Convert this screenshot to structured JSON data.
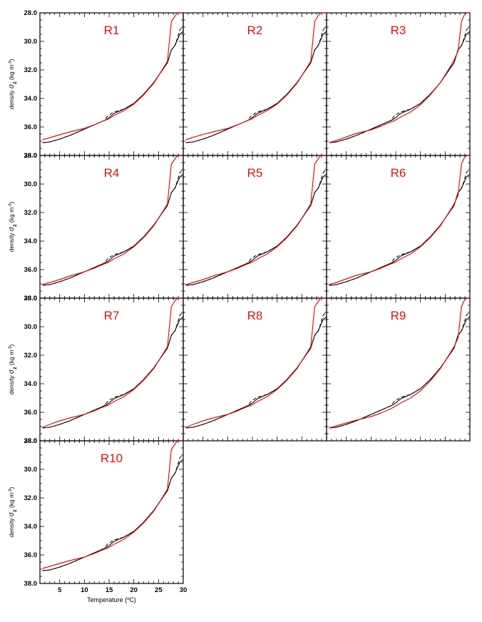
{
  "figure": {
    "ylabel_prefix": "density ",
    "ylabel_symbol": "σ",
    "ylabel_sub": "2",
    "ylabel_units_a": " (kg m",
    "ylabel_units_sup": "-3",
    "ylabel_units_b": ")",
    "xlabel_a": "Temperature (",
    "xlabel_sup": "o",
    "xlabel_b": "C)"
  },
  "colors": {
    "observed": "#000000",
    "model": "#e01010",
    "panel_label": "#e01010",
    "axis": "#000000"
  },
  "chart_data": [
    {
      "type": "line",
      "title": "R1",
      "x": [
        1.5,
        3,
        5,
        7,
        10,
        12,
        14,
        14.8,
        16,
        18,
        20,
        22,
        24,
        26,
        26.8,
        27.6,
        28.3,
        28.8,
        29.3,
        30
      ],
      "series": [
        {
          "values": [
            37.1,
            37.05,
            36.85,
            36.6,
            36.15,
            35.85,
            35.55,
            35.4,
            35.05,
            34.75,
            34.35,
            33.7,
            32.9,
            31.9,
            31.5,
            30.6,
            30.3,
            29.9,
            29.5,
            29.3
          ]
        },
        {
          "values": [
            37.1,
            37.05,
            36.85,
            36.6,
            36.15,
            35.85,
            35.55,
            35.2,
            34.95,
            34.75,
            34.35,
            33.7,
            32.9,
            31.9,
            31.5,
            30.6,
            30.3,
            29.8,
            29.2,
            28.95
          ]
        },
        {
          "values": [
            36.9,
            36.75,
            36.55,
            36.35,
            36.1,
            35.85,
            35.55,
            35.45,
            35.2,
            34.85,
            34.4,
            33.75,
            32.95,
            31.85,
            31.4,
            28.6,
            28.25,
            28.0,
            28.0,
            28.0
          ]
        }
      ],
      "xlim": [
        1,
        30
      ],
      "ylim": [
        28.0,
        38.0
      ],
      "yticks": [
        "28.0",
        "30.0",
        "32.0",
        "34.0",
        "36.0",
        "38.0"
      ],
      "xticks": [
        "5",
        "10",
        "15",
        "20",
        "25",
        "30"
      ]
    },
    {
      "type": "line",
      "title": "R2",
      "x": [
        1.5,
        3,
        5,
        7,
        10,
        12,
        14,
        14.8,
        16,
        18,
        20,
        22,
        24,
        26,
        26.8,
        27.6,
        28.3,
        28.8,
        29.3,
        30
      ],
      "series": [
        {
          "values": [
            37.1,
            37.05,
            36.85,
            36.6,
            36.15,
            35.85,
            35.55,
            35.4,
            35.05,
            34.75,
            34.35,
            33.7,
            32.9,
            31.9,
            31.5,
            30.6,
            30.3,
            29.9,
            29.5,
            29.3
          ]
        },
        {
          "values": [
            37.1,
            37.05,
            36.85,
            36.6,
            36.15,
            35.85,
            35.55,
            35.2,
            34.95,
            34.75,
            34.35,
            33.7,
            32.9,
            31.9,
            31.5,
            30.6,
            30.3,
            29.8,
            29.2,
            28.95
          ]
        },
        {
          "values": [
            36.9,
            36.72,
            36.52,
            36.35,
            36.1,
            35.85,
            35.55,
            35.45,
            35.2,
            34.85,
            34.4,
            33.75,
            32.95,
            31.85,
            31.4,
            28.6,
            28.2,
            28.0,
            28.0,
            28.0
          ]
        }
      ],
      "xlim": [
        1,
        30
      ],
      "ylim": [
        28.0,
        38.0
      ],
      "yticks": [
        "28.0",
        "30.0",
        "32.0",
        "34.0",
        "36.0",
        "38.0"
      ],
      "xticks": [
        "5",
        "10",
        "15",
        "20",
        "25",
        "30"
      ]
    },
    {
      "type": "line",
      "title": "R3",
      "x": [
        1.5,
        3,
        5,
        7,
        10,
        12,
        14,
        14.8,
        16,
        18,
        20,
        22,
        24,
        26,
        26.8,
        27.6,
        28.3,
        28.8,
        29.3,
        30
      ],
      "series": [
        {
          "values": [
            37.1,
            37.05,
            36.85,
            36.6,
            36.15,
            35.85,
            35.55,
            35.4,
            35.05,
            34.75,
            34.35,
            33.7,
            32.9,
            31.9,
            31.5,
            30.6,
            30.3,
            29.9,
            29.5,
            29.3
          ]
        },
        {
          "values": [
            37.1,
            37.05,
            36.85,
            36.6,
            36.15,
            35.85,
            35.55,
            35.2,
            34.95,
            34.75,
            34.35,
            33.7,
            32.9,
            31.9,
            31.5,
            30.6,
            30.3,
            29.8,
            29.2,
            28.95
          ]
        },
        {
          "values": [
            37.1,
            36.95,
            36.7,
            36.45,
            36.2,
            35.95,
            35.65,
            35.55,
            35.3,
            34.95,
            34.45,
            33.75,
            32.9,
            31.8,
            31.3,
            30.7,
            28.6,
            28.2,
            28.0,
            28.0
          ]
        }
      ],
      "xlim": [
        1,
        30
      ],
      "ylim": [
        28.0,
        38.0
      ],
      "yticks": [
        "28.0",
        "30.0",
        "32.0",
        "34.0",
        "36.0",
        "38.0"
      ],
      "xticks": [
        "5",
        "10",
        "15",
        "20",
        "25",
        "30"
      ]
    },
    {
      "type": "line",
      "title": "R4",
      "x": [
        1.5,
        3,
        5,
        7,
        10,
        12,
        14,
        14.8,
        16,
        18,
        20,
        22,
        24,
        26,
        26.8,
        27.6,
        28.3,
        28.8,
        29.3,
        30
      ],
      "series": [
        {
          "values": [
            37.1,
            37.05,
            36.85,
            36.6,
            36.15,
            35.85,
            35.55,
            35.4,
            35.05,
            34.75,
            34.35,
            33.7,
            32.9,
            31.9,
            31.5,
            30.6,
            30.3,
            29.9,
            29.5,
            29.3
          ]
        },
        {
          "values": [
            37.1,
            37.05,
            36.85,
            36.6,
            36.15,
            35.85,
            35.55,
            35.2,
            34.95,
            34.75,
            34.35,
            33.7,
            32.9,
            31.9,
            31.5,
            30.6,
            30.3,
            29.8,
            29.2,
            28.95
          ]
        },
        {
          "values": [
            37.05,
            36.9,
            36.7,
            36.45,
            36.15,
            35.9,
            35.6,
            35.5,
            35.25,
            34.9,
            34.4,
            33.75,
            32.95,
            31.85,
            31.4,
            28.6,
            28.25,
            28.0,
            28.0,
            28.0
          ]
        }
      ],
      "xlim": [
        1,
        30
      ],
      "ylim": [
        28.0,
        38.0
      ],
      "yticks": [
        "28.0",
        "30.0",
        "32.0",
        "34.0",
        "36.0",
        "38.0"
      ],
      "xticks": [
        "5",
        "10",
        "15",
        "20",
        "25",
        "30"
      ]
    },
    {
      "type": "line",
      "title": "R5",
      "x": [
        1.5,
        3,
        5,
        7,
        10,
        12,
        14,
        14.8,
        16,
        18,
        20,
        22,
        24,
        26,
        26.8,
        27.6,
        28.3,
        28.8,
        29.3,
        30
      ],
      "series": [
        {
          "values": [
            37.1,
            37.05,
            36.85,
            36.6,
            36.15,
            35.85,
            35.55,
            35.4,
            35.05,
            34.75,
            34.35,
            33.7,
            32.9,
            31.9,
            31.5,
            30.6,
            30.3,
            29.9,
            29.5,
            29.3
          ]
        },
        {
          "values": [
            37.1,
            37.05,
            36.85,
            36.6,
            36.15,
            35.85,
            35.55,
            35.2,
            34.95,
            34.75,
            34.35,
            33.7,
            32.9,
            31.9,
            31.5,
            30.6,
            30.3,
            29.8,
            29.2,
            28.95
          ]
        },
        {
          "values": [
            37.05,
            36.9,
            36.7,
            36.45,
            36.15,
            35.9,
            35.6,
            35.5,
            35.25,
            34.9,
            34.4,
            33.75,
            32.95,
            31.85,
            31.4,
            28.6,
            28.25,
            28.0,
            28.0,
            28.0
          ]
        }
      ],
      "xlim": [
        1,
        30
      ],
      "ylim": [
        28.0,
        38.0
      ],
      "yticks": [
        "28.0",
        "30.0",
        "32.0",
        "34.0",
        "36.0",
        "38.0"
      ],
      "xticks": [
        "5",
        "10",
        "15",
        "20",
        "25",
        "30"
      ]
    },
    {
      "type": "line",
      "title": "R6",
      "x": [
        1.5,
        3,
        5,
        7,
        10,
        12,
        14,
        14.8,
        16,
        18,
        20,
        22,
        24,
        26,
        26.8,
        27.6,
        28.3,
        28.8,
        29.3,
        30
      ],
      "series": [
        {
          "values": [
            37.1,
            37.05,
            36.85,
            36.6,
            36.15,
            35.85,
            35.55,
            35.4,
            35.05,
            34.75,
            34.35,
            33.7,
            32.9,
            31.9,
            31.5,
            30.6,
            30.3,
            29.9,
            29.5,
            29.3
          ]
        },
        {
          "values": [
            37.1,
            37.05,
            36.85,
            36.6,
            36.15,
            35.85,
            35.55,
            35.2,
            34.95,
            34.75,
            34.35,
            33.7,
            32.9,
            31.9,
            31.5,
            30.6,
            30.3,
            29.8,
            29.2,
            28.95
          ]
        },
        {
          "values": [
            37.05,
            36.9,
            36.65,
            36.4,
            36.15,
            35.9,
            35.6,
            35.5,
            35.25,
            34.9,
            34.4,
            33.75,
            32.95,
            31.85,
            31.4,
            30.8,
            28.6,
            28.2,
            28.0,
            28.0
          ]
        }
      ],
      "xlim": [
        1,
        30
      ],
      "ylim": [
        28.0,
        38.0
      ],
      "yticks": [
        "28.0",
        "30.0",
        "32.0",
        "34.0",
        "36.0",
        "38.0"
      ],
      "xticks": [
        "5",
        "10",
        "15",
        "20",
        "25",
        "30"
      ]
    },
    {
      "type": "line",
      "title": "R7",
      "x": [
        1.5,
        3,
        5,
        7,
        10,
        12,
        14,
        14.8,
        16,
        18,
        20,
        22,
        24,
        26,
        26.8,
        27.6,
        28.3,
        28.8,
        29.3,
        30
      ],
      "series": [
        {
          "values": [
            37.1,
            37.05,
            36.85,
            36.6,
            36.15,
            35.85,
            35.55,
            35.4,
            35.05,
            34.75,
            34.35,
            33.7,
            32.9,
            31.9,
            31.5,
            30.6,
            30.3,
            29.9,
            29.5,
            29.3
          ]
        },
        {
          "values": [
            37.1,
            37.05,
            36.85,
            36.6,
            36.15,
            35.85,
            35.55,
            35.2,
            34.95,
            34.75,
            34.35,
            33.7,
            32.9,
            31.9,
            31.5,
            30.6,
            30.3,
            29.8,
            29.2,
            28.95
          ]
        },
        {
          "values": [
            37.05,
            36.85,
            36.6,
            36.4,
            36.15,
            35.9,
            35.6,
            35.5,
            35.25,
            34.9,
            34.4,
            33.75,
            32.95,
            31.85,
            31.4,
            28.6,
            28.2,
            28.0,
            28.0,
            28.0
          ]
        }
      ],
      "xlim": [
        1,
        30
      ],
      "ylim": [
        28.0,
        38.0
      ],
      "yticks": [
        "28.0",
        "30.0",
        "32.0",
        "34.0",
        "36.0",
        "38.0"
      ],
      "xticks": [
        "5",
        "10",
        "15",
        "20",
        "25",
        "30"
      ]
    },
    {
      "type": "line",
      "title": "R8",
      "x": [
        1.5,
        3,
        5,
        7,
        10,
        12,
        14,
        14.8,
        16,
        18,
        20,
        22,
        24,
        26,
        26.8,
        27.6,
        28.3,
        28.8,
        29.3,
        30
      ],
      "series": [
        {
          "values": [
            37.1,
            37.05,
            36.85,
            36.6,
            36.15,
            35.85,
            35.55,
            35.4,
            35.05,
            34.75,
            34.35,
            33.7,
            32.9,
            31.9,
            31.5,
            30.6,
            30.3,
            29.9,
            29.5,
            29.3
          ]
        },
        {
          "values": [
            37.1,
            37.05,
            36.85,
            36.6,
            36.15,
            35.85,
            35.55,
            35.2,
            34.95,
            34.75,
            34.35,
            33.7,
            32.9,
            31.9,
            31.5,
            30.6,
            30.3,
            29.8,
            29.2,
            28.95
          ]
        },
        {
          "values": [
            37.05,
            36.85,
            36.6,
            36.4,
            36.15,
            35.9,
            35.6,
            35.5,
            35.25,
            34.9,
            34.4,
            33.75,
            32.95,
            31.85,
            31.4,
            28.6,
            28.25,
            28.0,
            28.0,
            28.0
          ]
        }
      ],
      "xlim": [
        1,
        30
      ],
      "ylim": [
        28.0,
        38.0
      ],
      "yticks": [
        "28.0",
        "30.0",
        "32.0",
        "34.0",
        "36.0",
        "38.0"
      ],
      "xticks": [
        "5",
        "10",
        "15",
        "20",
        "25",
        "30"
      ]
    },
    {
      "type": "line",
      "title": "R9",
      "x": [
        1.5,
        3,
        5,
        7,
        10,
        12,
        14,
        14.8,
        16,
        18,
        20,
        22,
        24,
        26,
        26.8,
        27.6,
        28.3,
        28.8,
        29.3,
        30
      ],
      "series": [
        {
          "values": [
            37.1,
            37.05,
            36.85,
            36.6,
            36.15,
            35.85,
            35.55,
            35.4,
            35.05,
            34.75,
            34.35,
            33.7,
            32.9,
            31.9,
            31.5,
            30.6,
            30.3,
            29.9,
            29.5,
            29.3
          ]
        },
        {
          "values": [
            37.1,
            37.05,
            36.85,
            36.6,
            36.15,
            35.85,
            35.55,
            35.2,
            34.95,
            34.75,
            34.35,
            33.7,
            32.9,
            31.9,
            31.5,
            30.6,
            30.3,
            29.8,
            29.2,
            28.95
          ]
        },
        {
          "values": [
            37.1,
            36.95,
            36.75,
            36.55,
            36.3,
            36.05,
            35.75,
            35.6,
            35.35,
            35.0,
            34.5,
            33.8,
            32.95,
            31.85,
            31.4,
            30.8,
            28.6,
            28.2,
            28.0,
            28.0
          ]
        }
      ],
      "xlim": [
        1,
        30
      ],
      "ylim": [
        28.0,
        38.0
      ],
      "yticks": [
        "28.0",
        "30.0",
        "32.0",
        "34.0",
        "36.0",
        "38.0"
      ],
      "xticks": [
        "5",
        "10",
        "15",
        "20",
        "25",
        "30"
      ]
    },
    {
      "type": "line",
      "title": "R10",
      "x": [
        1.5,
        3,
        5,
        7,
        10,
        12,
        14,
        14.8,
        16,
        18,
        20,
        22,
        24,
        26,
        26.8,
        27.6,
        28.3,
        28.8,
        29.3,
        30
      ],
      "series": [
        {
          "values": [
            37.1,
            37.05,
            36.85,
            36.6,
            36.15,
            35.85,
            35.55,
            35.4,
            35.05,
            34.75,
            34.35,
            33.7,
            32.9,
            31.9,
            31.5,
            30.6,
            30.3,
            29.9,
            29.5,
            29.3
          ]
        },
        {
          "values": [
            37.1,
            37.05,
            36.85,
            36.6,
            36.15,
            35.85,
            35.55,
            35.2,
            34.95,
            34.75,
            34.35,
            33.7,
            32.9,
            31.9,
            31.5,
            30.6,
            30.3,
            29.8,
            29.2,
            28.95
          ]
        },
        {
          "values": [
            36.95,
            36.8,
            36.6,
            36.4,
            36.15,
            35.9,
            35.6,
            35.5,
            35.25,
            34.9,
            34.4,
            33.75,
            32.95,
            31.85,
            31.4,
            28.6,
            28.25,
            28.0,
            28.0,
            28.0
          ]
        }
      ],
      "xlim": [
        1,
        30
      ],
      "ylim": [
        28.0,
        38.0
      ],
      "yticks": [
        "28.0",
        "30.0",
        "32.0",
        "34.0",
        "36.0",
        "38.0"
      ],
      "xticks": [
        "5",
        "10",
        "15",
        "20",
        "25",
        "30"
      ]
    }
  ]
}
